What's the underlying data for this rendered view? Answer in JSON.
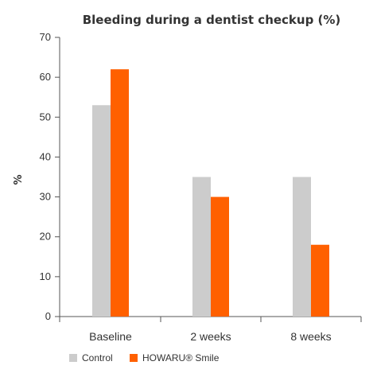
{
  "chart_data": {
    "type": "bar",
    "title": "Bleeding during a dentist checkup (%)",
    "xlabel": "",
    "ylabel": "%",
    "ylim": [
      0,
      70
    ],
    "yticks": [
      0,
      10,
      20,
      30,
      40,
      50,
      60,
      70
    ],
    "categories": [
      "Baseline",
      "2 weeks",
      "8 weeks"
    ],
    "series": [
      {
        "name": "Control",
        "values": [
          53,
          35,
          35
        ],
        "color": "#cccccc"
      },
      {
        "name": "HOWARU® Smile",
        "values": [
          62,
          30,
          18
        ],
        "color": "#ff6000"
      }
    ],
    "legend_position": "bottom-left",
    "grid": false
  }
}
